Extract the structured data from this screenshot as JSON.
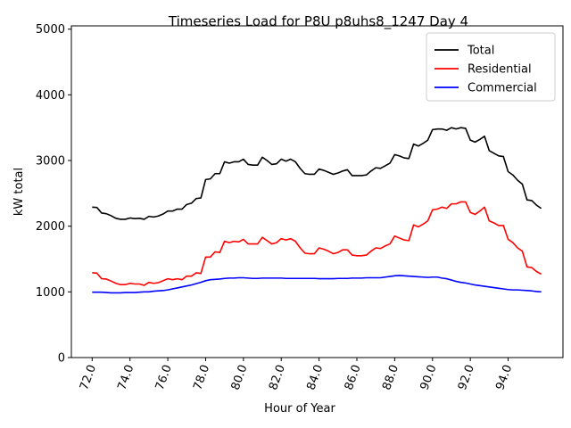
{
  "chart_data": {
    "type": "line",
    "title": "Timeseries Load for P8U p8uhs8_1247  Day 4",
    "xlabel": "Hour of Year",
    "ylabel": "kW total",
    "xlim": [
      70.9,
      96.9
    ],
    "ylim": [
      0,
      5050
    ],
    "x_ticks": [
      72,
      74,
      76,
      78,
      80,
      82,
      84,
      86,
      88,
      90,
      92,
      94
    ],
    "x_tick_labels": [
      "72.0",
      "74.0",
      "76.0",
      "78.0",
      "80.0",
      "82.0",
      "84.0",
      "86.0",
      "88.0",
      "90.0",
      "92.0",
      "94.0"
    ],
    "y_ticks": [
      0,
      1000,
      2000,
      3000,
      4000,
      5000
    ],
    "y_tick_labels": [
      "0",
      "1000",
      "2000",
      "3000",
      "4000",
      "5000"
    ],
    "legend_position": "top-right",
    "x_start": 72.0,
    "x_step": 0.25,
    "series": [
      {
        "name": "Total",
        "color": "#000000",
        "values": [
          2290,
          2285,
          2200,
          2190,
          2160,
          2120,
          2105,
          2105,
          2125,
          2115,
          2120,
          2105,
          2150,
          2140,
          2155,
          2185,
          2230,
          2230,
          2260,
          2260,
          2330,
          2350,
          2420,
          2430,
          2710,
          2720,
          2800,
          2800,
          2980,
          2960,
          2980,
          2980,
          3020,
          2940,
          2930,
          2930,
          3050,
          3000,
          2940,
          2950,
          3020,
          2990,
          3020,
          2980,
          2880,
          2800,
          2790,
          2790,
          2870,
          2850,
          2820,
          2790,
          2810,
          2840,
          2860,
          2770,
          2770,
          2770,
          2780,
          2840,
          2890,
          2880,
          2920,
          2960,
          3090,
          3070,
          3040,
          3030,
          3250,
          3220,
          3260,
          3310,
          3470,
          3480,
          3480,
          3460,
          3500,
          3480,
          3500,
          3490,
          3310,
          3280,
          3320,
          3370,
          3150,
          3110,
          3070,
          3060,
          2830,
          2780,
          2700,
          2640,
          2400,
          2390,
          2320,
          2270
        ]
      },
      {
        "name": "Residential",
        "color": "#ff0000",
        "values": [
          1290,
          1285,
          1200,
          1195,
          1165,
          1130,
          1110,
          1110,
          1130,
          1120,
          1120,
          1100,
          1145,
          1130,
          1140,
          1170,
          1200,
          1185,
          1200,
          1185,
          1240,
          1240,
          1290,
          1280,
          1530,
          1530,
          1610,
          1600,
          1770,
          1750,
          1770,
          1760,
          1800,
          1730,
          1730,
          1730,
          1830,
          1780,
          1730,
          1750,
          1810,
          1790,
          1810,
          1770,
          1670,
          1590,
          1580,
          1580,
          1670,
          1650,
          1620,
          1580,
          1600,
          1640,
          1640,
          1560,
          1550,
          1550,
          1560,
          1620,
          1670,
          1660,
          1700,
          1730,
          1850,
          1820,
          1790,
          1780,
          2020,
          1990,
          2030,
          2080,
          2250,
          2260,
          2290,
          2270,
          2340,
          2340,
          2370,
          2370,
          2210,
          2180,
          2230,
          2290,
          2080,
          2050,
          2010,
          2010,
          1800,
          1750,
          1670,
          1620,
          1380,
          1370,
          1310,
          1270
        ]
      },
      {
        "name": "Commercial",
        "color": "#0000ff",
        "values": [
          995,
          995,
          995,
          990,
          985,
          985,
          985,
          990,
          990,
          990,
          995,
          1000,
          1000,
          1010,
          1015,
          1020,
          1030,
          1045,
          1060,
          1075,
          1090,
          1105,
          1125,
          1145,
          1170,
          1185,
          1190,
          1195,
          1205,
          1210,
          1210,
          1215,
          1215,
          1210,
          1205,
          1205,
          1210,
          1210,
          1210,
          1210,
          1210,
          1205,
          1205,
          1205,
          1205,
          1205,
          1205,
          1205,
          1200,
          1200,
          1200,
          1200,
          1205,
          1205,
          1205,
          1210,
          1210,
          1210,
          1215,
          1215,
          1215,
          1215,
          1225,
          1235,
          1245,
          1250,
          1245,
          1240,
          1235,
          1230,
          1225,
          1220,
          1225,
          1225,
          1210,
          1200,
          1180,
          1160,
          1145,
          1135,
          1120,
          1105,
          1095,
          1085,
          1075,
          1065,
          1055,
          1045,
          1035,
          1030,
          1030,
          1025,
          1020,
          1015,
          1005,
          1000
        ]
      }
    ]
  }
}
